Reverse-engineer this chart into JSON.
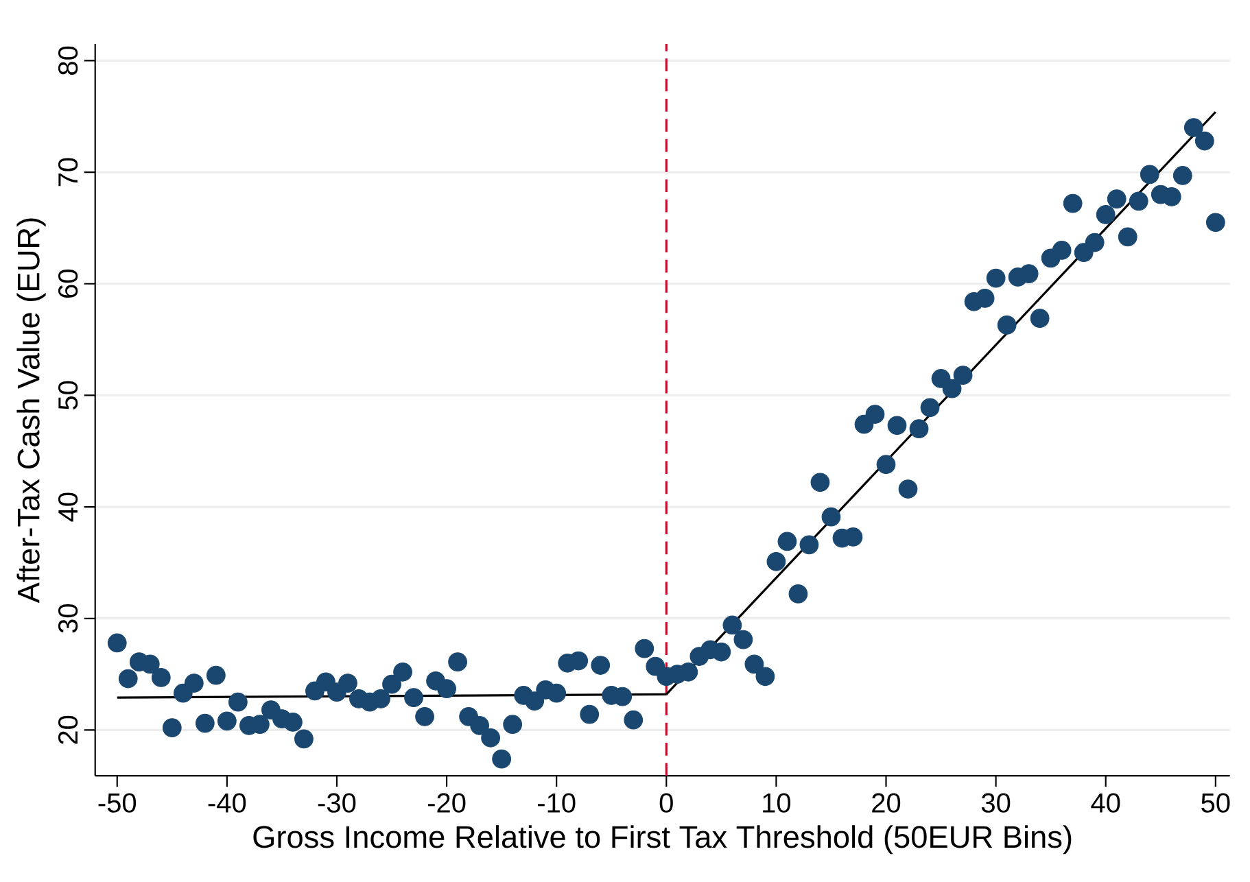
{
  "chart_data": {
    "type": "scatter",
    "xlabel": "Gross Income Relative to First Tax Threshold (50EUR Bins)",
    "ylabel": "After-Tax Cash Value (EUR)",
    "xlim": [
      -52,
      51.3
    ],
    "ylim": [
      15.9,
      81.5
    ],
    "xticks": [
      -50,
      -40,
      -30,
      -20,
      -10,
      0,
      10,
      20,
      30,
      40,
      50
    ],
    "yticks": [
      20,
      30,
      40,
      50,
      60,
      70,
      80
    ],
    "grid": "y",
    "ref_lines": [
      {
        "axis": "x",
        "value": 0,
        "color": "#c8102e",
        "line_style": "dashed"
      }
    ],
    "series": [
      {
        "marker": "circle",
        "color": "#1a476f",
        "x": [
          -50,
          -49,
          -48,
          -47,
          -46,
          -45,
          -44,
          -43,
          -42,
          -41,
          -40,
          -39,
          -38,
          -37,
          -36,
          -35,
          -34,
          -33,
          -32,
          -31,
          -30,
          -29,
          -28,
          -27,
          -26,
          -25,
          -24,
          -23,
          -22,
          -21,
          -20,
          -19,
          -18,
          -17,
          -16,
          -15,
          -14,
          -13,
          -12,
          -11,
          -10,
          -9,
          -8,
          -7,
          -6,
          -5,
          -4,
          -3,
          -2,
          -1,
          0,
          1,
          2,
          3,
          4,
          5,
          6,
          7,
          8,
          9,
          10,
          11,
          12,
          13,
          14,
          15,
          16,
          17,
          18,
          19,
          20,
          21,
          22,
          23,
          24,
          25,
          26,
          27,
          28,
          29,
          30,
          31,
          32,
          33,
          34,
          35,
          36,
          37,
          38,
          39,
          40,
          41,
          42,
          43,
          44,
          45,
          46,
          47,
          48,
          49,
          50
        ],
        "values": [
          27.8,
          24.6,
          26.1,
          25.9,
          24.7,
          20.2,
          23.3,
          24.2,
          20.6,
          24.9,
          20.8,
          22.5,
          20.4,
          20.5,
          21.8,
          21.0,
          20.7,
          19.2,
          23.5,
          24.3,
          23.4,
          24.2,
          22.8,
          22.5,
          22.8,
          24.1,
          25.2,
          22.9,
          21.2,
          24.4,
          23.7,
          26.1,
          21.2,
          20.4,
          19.3,
          17.4,
          20.5,
          23.1,
          22.6,
          23.6,
          23.3,
          26.0,
          26.2,
          21.4,
          25.8,
          23.1,
          23.0,
          20.9,
          27.3,
          25.7,
          24.8,
          25.0,
          25.2,
          26.6,
          27.2,
          27.0,
          29.4,
          28.1,
          25.9,
          24.8,
          35.1,
          36.9,
          32.2,
          36.6,
          42.2,
          39.1,
          37.2,
          37.3,
          47.4,
          48.3,
          43.8,
          47.3,
          41.6,
          47.0,
          48.9,
          51.5,
          50.6,
          51.8,
          58.4,
          58.7,
          60.5,
          56.3,
          60.6,
          60.9,
          56.9,
          62.3,
          63.0,
          67.2,
          62.8,
          63.7,
          66.2,
          67.6,
          64.2,
          67.4,
          69.8,
          68.0,
          67.8,
          69.7,
          74.0,
          72.8,
          65.5
        ]
      },
      {
        "type": "line",
        "color": "#000000",
        "x": [
          -50,
          0
        ],
        "values": [
          22.9,
          23.2
        ]
      },
      {
        "type": "line",
        "color": "#000000",
        "x": [
          0,
          50
        ],
        "values": [
          23.2,
          75.4
        ]
      }
    ]
  }
}
